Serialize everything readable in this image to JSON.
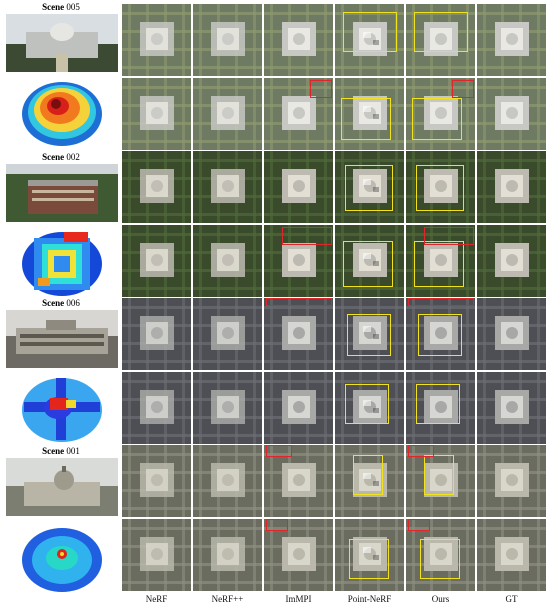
{
  "scenes": [
    {
      "title_word": "Scene",
      "title_num": "005"
    },
    {
      "title_word": "Scene",
      "title_num": "002"
    },
    {
      "title_word": "Scene",
      "title_num": "006"
    },
    {
      "title_word": "Scene",
      "title_num": "001"
    }
  ],
  "methods": [
    "NeRF",
    "NeRF++",
    "ImMPI",
    "Point-NeRF",
    "Ours",
    "GT"
  ],
  "colors": {
    "highlight_box": "#f2e21a",
    "error_box": "#e0252b"
  }
}
